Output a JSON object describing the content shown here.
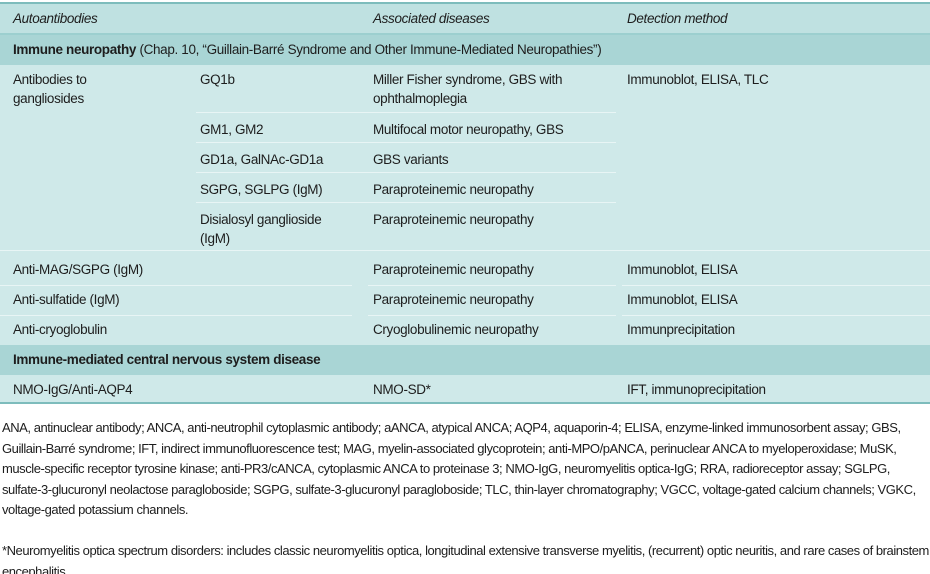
{
  "header": {
    "col1": "Autoantibodies",
    "col3": "Associated diseases",
    "col4": "Detection method"
  },
  "sections": [
    {
      "title_bold": "Immune neuropathy",
      "title_rest": " (Chap. 10, “Guillain-Barré Syndrome and Other Immune-Mediated Neuropathies”)"
    },
    {
      "title_bold": "Immune-mediated central nervous system disease",
      "title_rest": ""
    }
  ],
  "ganglioside_group": {
    "label_line1": "Antibodies to",
    "label_line2": "gangliosides",
    "detection": "Immunoblot, ELISA, TLC",
    "rows": [
      {
        "antigen": "GQ1b",
        "disease_line1": "Miller Fisher syndrome, GBS with",
        "disease_line2": "ophthalmoplegia"
      },
      {
        "antigen": "GM1, GM2",
        "disease_line1": "Multifocal motor neuropathy, GBS"
      },
      {
        "antigen": "GD1a, GalNAc-GD1a",
        "disease_line1": "GBS variants"
      },
      {
        "antigen": "SGPG, SGLPG (IgM)",
        "disease_line1": "Paraproteinemic neuropathy"
      },
      {
        "antigen": "Disialosyl ganglioside",
        "antigen_line2": "(IgM)",
        "disease_line1": "Paraproteinemic neuropathy"
      }
    ]
  },
  "rows": [
    {
      "antibody": "Anti-MAG/SGPG (IgM)",
      "disease": "Paraproteinemic neuropathy",
      "detection": "Immunoblot, ELISA"
    },
    {
      "antibody": "Anti-sulfatide (IgM)",
      "disease": "Paraproteinemic neuropathy",
      "detection": "Immunoblot, ELISA"
    },
    {
      "antibody": "Anti-cryoglobulin",
      "disease": "Cryoglobulinemic neuropathy",
      "detection": "Immunprecipitation"
    },
    {
      "antibody": "NMO-IgG/Anti-AQP4",
      "disease": "NMO-SD*",
      "detection": "IFT, immunoprecipitation"
    }
  ],
  "footnotes": {
    "abbreviations": "ANA, antinuclear antibody; ANCA, anti-neutrophil cytoplasmic antibody; aANCA, atypical ANCA; AQP4, aquaporin-4; ELISA, enzyme-linked immunosorbent assay; GBS, Guillain-Barré syndrome; IFT, indirect immunofluorescence test; MAG, myelin-associated glycoprotein; anti-MPO/pANCA, perinuclear ANCA to myeloperoxidase; MuSK, muscle-specific receptor tyrosine kinase; anti-PR3/cANCA, cytoplasmic ANCA to proteinase 3; NMO-IgG, neuromyelitis optica-IgG; RRA, radioreceptor assay; SGLPG, sulfate-3-glucuronyl neolactose paragloboside; SGPG, sulfate-3-glucuronyl paragloboside; TLC, thin-layer chromatography; VGCC, voltage-gated calcium channels; VGKC, voltage-gated potassium channels.",
    "asterisk": "*Neuromyelitis optica spectrum disorders: includes classic neuromyelitis optica, longitudinal extensive transverse myelitis, (recurrent) optic neuritis, and rare cases of brainstem encephalitis."
  },
  "colors": {
    "body": "#cfe9e9",
    "header": "#bfe1e1",
    "section": "#a9d5d5",
    "rule": "#7dbcbc"
  }
}
